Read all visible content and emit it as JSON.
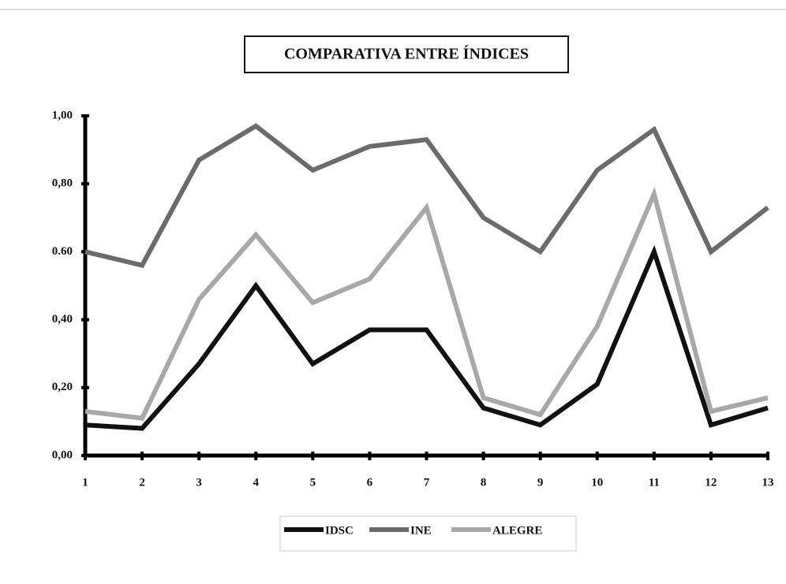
{
  "chart_data": {
    "type": "line",
    "title": "COMPARATIVA ENTRE ÍNDICES",
    "x": [
      1,
      2,
      3,
      4,
      5,
      6,
      7,
      8,
      9,
      10,
      11,
      12,
      13
    ],
    "xlim": [
      1,
      13
    ],
    "xticks": [
      1,
      2,
      3,
      4,
      5,
      6,
      7,
      8,
      9,
      10,
      11,
      12,
      13
    ],
    "ylim": [
      0,
      1
    ],
    "yticks": [
      {
        "value": 0,
        "label": "0,00"
      },
      {
        "value": 0.2,
        "label": "0,20"
      },
      {
        "value": 0.4,
        "label": "0,40"
      },
      {
        "value": 0.6,
        "label": "0.60"
      },
      {
        "value": 0.8,
        "label": "0,80"
      },
      {
        "value": 1,
        "label": "1,00"
      }
    ],
    "legend": "bottom",
    "series": [
      {
        "name": "IDSC",
        "color": "#111111",
        "values": [
          0.09,
          0.08,
          0.27,
          0.5,
          0.27,
          0.37,
          0.37,
          0.14,
          0.09,
          0.21,
          0.6,
          0.09,
          0.14
        ]
      },
      {
        "name": "INE",
        "color": "#6b6b6b",
        "values": [
          0.6,
          0.56,
          0.87,
          0.97,
          0.84,
          0.91,
          0.93,
          0.7,
          0.6,
          0.84,
          0.96,
          0.6,
          0.73
        ]
      },
      {
        "name": "ALEGRE",
        "color": "#a8a8a8",
        "values": [
          0.13,
          0.11,
          0.46,
          0.65,
          0.45,
          0.52,
          0.73,
          0.17,
          0.12,
          0.38,
          0.77,
          0.13,
          0.17
        ]
      }
    ]
  }
}
